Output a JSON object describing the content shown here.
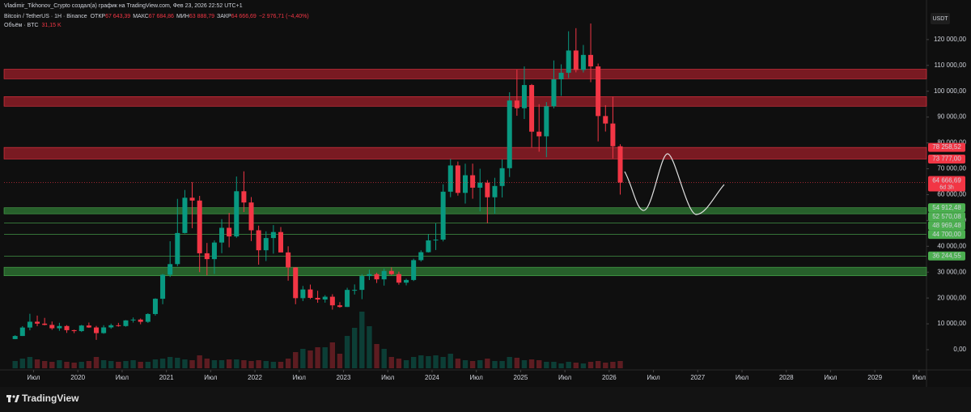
{
  "chart_data": {
    "type": "candlestick",
    "attribution": "Vladimir_Tikhonov_Crypto создал(а) график на TradingView.com, Фев 23, 2026 22:52 UTC+1",
    "symbol": "Bitcoin / TetherUS · 1Н · Binance",
    "ohlc": [
      {
        "name": "ОТКР",
        "value": "67 643,39"
      },
      {
        "name": "МАКС",
        "value": "67 684,86"
      },
      {
        "name": "МИН",
        "value": "63 888,79"
      },
      {
        "name": "ЗАКР",
        "value": "64 666,69"
      }
    ],
    "change": "−2 976,71 (−4,40%)",
    "volume_title": "Объём · BTC",
    "volume_last": "31,15 K",
    "currency": "USDT",
    "brand": "TradingView",
    "up_color": "#089981",
    "down_color": "#f23645",
    "x": [
      "2019-04",
      "2019-05",
      "2019-06",
      "2019-07",
      "2019-08",
      "2019-09",
      "2019-10",
      "2019-11",
      "2019-12",
      "2020-01",
      "2020-02",
      "2020-03",
      "2020-04",
      "2020-05",
      "2020-06",
      "2020-07",
      "2020-08",
      "2020-09",
      "2020-10",
      "2020-11",
      "2020-12",
      "2021-01",
      "2021-02",
      "2021-03",
      "2021-04",
      "2021-05",
      "2021-06",
      "2021-07",
      "2021-08",
      "2021-09",
      "2021-10",
      "2021-11",
      "2021-12",
      "2022-01",
      "2022-02",
      "2022-03",
      "2022-04",
      "2022-05",
      "2022-06",
      "2022-07",
      "2022-08",
      "2022-09",
      "2022-10",
      "2022-11",
      "2022-12",
      "2023-01",
      "2023-02",
      "2023-03",
      "2023-04",
      "2023-05",
      "2023-06",
      "2023-07",
      "2023-08",
      "2023-09",
      "2023-10",
      "2023-11",
      "2023-12",
      "2024-01",
      "2024-02",
      "2024-03",
      "2024-04",
      "2024-05",
      "2024-06",
      "2024-07",
      "2024-08",
      "2024-09",
      "2024-10",
      "2024-11",
      "2024-12",
      "2025-01",
      "2025-02",
      "2025-03",
      "2025-04",
      "2025-05",
      "2025-06",
      "2025-07",
      "2025-08",
      "2025-09",
      "2025-10",
      "2025-11",
      "2025-12",
      "2026-01",
      "2026-02"
    ],
    "open": [
      4100,
      5300,
      8570,
      10820,
      10080,
      9590,
      8290,
      9150,
      7550,
      7190,
      9350,
      8600,
      6410,
      8620,
      9450,
      9140,
      11330,
      11650,
      10780,
      13800,
      19700,
      28990,
      33110,
      45140,
      58790,
      57700,
      37300,
      35040,
      41460,
      47150,
      43820,
      61300,
      56950,
      46200,
      38470,
      43190,
      45510,
      37630,
      31800,
      19940,
      23300,
      20050,
      19420,
      20490,
      17160,
      16540,
      23130,
      23140,
      28480,
      29230,
      27210,
      30470,
      29230,
      25940,
      26970,
      34640,
      37720,
      42280,
      42580,
      61130,
      71280,
      60670,
      67490,
      62680,
      64630,
      58970,
      63330,
      70220,
      96400,
      93430,
      102400,
      84350,
      82550,
      94170,
      104600,
      107150,
      115750,
      108250,
      114050,
      109600,
      90400,
      87500,
      78700
    ],
    "high": [
      5600,
      9100,
      13900,
      13200,
      12300,
      10900,
      10400,
      9500,
      7750,
      9600,
      10500,
      9200,
      9470,
      10080,
      10380,
      11450,
      12470,
      12070,
      14100,
      19900,
      29300,
      41950,
      58350,
      61800,
      64850,
      59500,
      41300,
      42300,
      50500,
      52900,
      67000,
      69000,
      59050,
      48000,
      45800,
      48200,
      47450,
      40000,
      31950,
      24650,
      25200,
      22800,
      21100,
      21470,
      18400,
      23950,
      25250,
      29200,
      31000,
      29800,
      31400,
      31800,
      30200,
      27480,
      35200,
      38450,
      44700,
      48970,
      64000,
      73800,
      72800,
      71950,
      71980,
      70000,
      65600,
      66500,
      73600,
      99600,
      108350,
      109600,
      102800,
      95000,
      95800,
      111900,
      110400,
      123200,
      124400,
      117900,
      126200,
      110700,
      94600,
      97900,
      79500
    ],
    "low": [
      4050,
      5300,
      7500,
      9100,
      9400,
      7700,
      7300,
      6500,
      6400,
      6850,
      8450,
      3800,
      6150,
      8100,
      8900,
      8900,
      10500,
      9830,
      10370,
      13200,
      17600,
      28130,
      32300,
      44950,
      47000,
      30000,
      28800,
      29300,
      37330,
      39600,
      43300,
      53250,
      42000,
      32900,
      34300,
      37150,
      37700,
      26700,
      17600,
      18800,
      19600,
      18150,
      18200,
      15500,
      16250,
      16500,
      21350,
      19550,
      26950,
      25800,
      24800,
      28860,
      25150,
      24900,
      26550,
      34100,
      37600,
      38550,
      41900,
      59000,
      59600,
      56550,
      58400,
      53500,
      49000,
      52550,
      58900,
      66800,
      90500,
      89250,
      78250,
      76600,
      74500,
      93400,
      98200,
      105100,
      107300,
      107250,
      103500,
      80600,
      84400,
      74000,
      60000
    ],
    "close": [
      5300,
      8570,
      10820,
      10080,
      9590,
      8290,
      9150,
      7550,
      7190,
      9350,
      8600,
      6410,
      8620,
      9450,
      9140,
      11330,
      11650,
      10780,
      13800,
      19700,
      28990,
      33110,
      45140,
      58790,
      57700,
      37300,
      35040,
      41460,
      47150,
      43820,
      61300,
      56950,
      46200,
      38470,
      43190,
      45510,
      37630,
      31800,
      19940,
      23300,
      20050,
      19420,
      20490,
      17160,
      16540,
      23130,
      23140,
      28480,
      29230,
      27210,
      30470,
      29230,
      25940,
      26970,
      34640,
      37720,
      42280,
      42580,
      61130,
      71280,
      60670,
      67490,
      62680,
      64630,
      58970,
      63330,
      70220,
      96400,
      93430,
      102400,
      84350,
      82550,
      94170,
      104600,
      107150,
      115750,
      108250,
      114050,
      109600,
      90400,
      87500,
      78700,
      64666.69
    ],
    "volume": [
      45,
      60,
      70,
      55,
      45,
      40,
      50,
      40,
      35,
      40,
      45,
      70,
      50,
      45,
      40,
      45,
      50,
      40,
      40,
      55,
      60,
      70,
      65,
      55,
      50,
      80,
      60,
      50,
      50,
      55,
      55,
      50,
      45,
      50,
      45,
      40,
      40,
      60,
      100,
      120,
      110,
      130,
      130,
      160,
      90,
      200,
      250,
      350,
      260,
      150,
      120,
      70,
      60,
      50,
      70,
      80,
      75,
      80,
      70,
      90,
      60,
      50,
      45,
      50,
      60,
      45,
      45,
      70,
      65,
      50,
      55,
      50,
      40,
      40,
      30,
      40,
      35,
      30,
      40,
      45,
      35,
      40,
      45
    ],
    "vlim": [
      0,
      2200
    ],
    "xlim": [
      "2019-03",
      "2029-08"
    ],
    "xticks": [
      {
        "value": "2019-07",
        "label": "Июл"
      },
      {
        "value": "2020-01",
        "label": "2020"
      },
      {
        "value": "2020-07",
        "label": "Июл"
      },
      {
        "value": "2021-01",
        "label": "2021"
      },
      {
        "value": "2021-07",
        "label": "Июл"
      },
      {
        "value": "2022-01",
        "label": "2022"
      },
      {
        "value": "2022-07",
        "label": "Июл"
      },
      {
        "value": "2023-01",
        "label": "2023"
      },
      {
        "value": "2023-07",
        "label": "Июл"
      },
      {
        "value": "2024-01",
        "label": "2024"
      },
      {
        "value": "2024-07",
        "label": "Июл"
      },
      {
        "value": "2025-01",
        "label": "2025"
      },
      {
        "value": "2025-07",
        "label": "Июл"
      },
      {
        "value": "2026-01",
        "label": "2026"
      },
      {
        "value": "2026-07",
        "label": "Июл"
      },
      {
        "value": "2027-01",
        "label": "2027"
      },
      {
        "value": "2027-07",
        "label": "Июл"
      },
      {
        "value": "2028-01",
        "label": "2028"
      },
      {
        "value": "2028-07",
        "label": "Июл"
      },
      {
        "value": "2029-01",
        "label": "2029"
      },
      {
        "value": "2029-07",
        "label": "Июл"
      }
    ],
    "ylim": [
      -7200,
      130600
    ],
    "yticks": [
      {
        "value": 0,
        "label": "0,00"
      },
      {
        "value": 10000,
        "label": "10 000,00"
      },
      {
        "value": 20000,
        "label": "20 000,00"
      },
      {
        "value": 30000,
        "label": "30 000,00"
      },
      {
        "value": 40000,
        "label": "40 000,00"
      },
      {
        "value": 50000,
        "label": "50 000,00"
      },
      {
        "value": 60000,
        "label": "60 000,00"
      },
      {
        "value": 70000,
        "label": "70 000,00"
      },
      {
        "value": 80000,
        "label": "80 000,00"
      },
      {
        "value": 90000,
        "label": "90 000,00"
      },
      {
        "value": 100000,
        "label": "100 000,00"
      },
      {
        "value": 110000,
        "label": "110 000,00"
      },
      {
        "value": 120000,
        "label": "120 000,00"
      }
    ],
    "zones": [
      {
        "from": 104800,
        "to": 108500,
        "color": "#8c1c26"
      },
      {
        "from": 94200,
        "to": 97900,
        "color": "#8c1c26"
      },
      {
        "from": 73777,
        "to": 78258.52,
        "color": "#8c1c26"
      },
      {
        "from": 52570.08,
        "to": 54912.48,
        "color": "#2b6f30"
      },
      {
        "from": 28600,
        "to": 31900,
        "color": "#2b6f30"
      }
    ],
    "levels": [
      48969.48,
      44700,
      36244.55
    ],
    "price_labels": [
      {
        "value": 78258.52,
        "label": "78 258,52",
        "color": "#f23645"
      },
      {
        "value": 73777,
        "label": "73 777,00",
        "color": "#f23645"
      },
      {
        "value": 54912.48,
        "label": "54 912,48",
        "color": "#4caf50"
      },
      {
        "value": 52570.08,
        "label": "52 570,08",
        "color": "#4caf50"
      },
      {
        "value": 48969.48,
        "label": "48 969,48",
        "color": "#4caf50"
      },
      {
        "value": 44700,
        "label": "44 700,00",
        "color": "#4caf50"
      },
      {
        "value": 36244.55,
        "label": "36 244,55",
        "color": "#4caf50"
      }
    ],
    "last_price": {
      "value": 64666.69,
      "label": "64 666,69"
    },
    "countdown": "6d 3h"
  }
}
